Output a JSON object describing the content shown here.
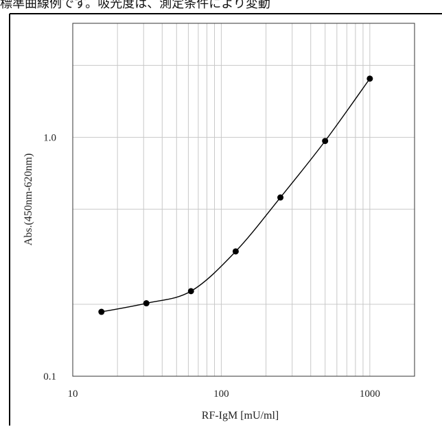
{
  "caption": "標準曲線例です。吸光度は、測定条件により変動",
  "chart_data": {
    "type": "line",
    "title": "",
    "xlabel": "RF-IgM [mU/ml]",
    "ylabel": "Abs.(450nm-620nm)",
    "x_scale": "log",
    "y_scale": "log",
    "xlim": [
      10,
      2000
    ],
    "ylim": [
      0.1,
      3.0
    ],
    "x_ticks": [
      "10",
      "100",
      "1000"
    ],
    "y_ticks": [
      "0.1",
      "1.0"
    ],
    "grid": true,
    "series": [
      {
        "x": [
          15.6,
          31.3,
          62.5,
          125,
          250,
          500,
          1000
        ],
        "values": [
          0.186,
          0.202,
          0.227,
          0.333,
          0.56,
          0.965,
          1.76
        ]
      }
    ]
  }
}
